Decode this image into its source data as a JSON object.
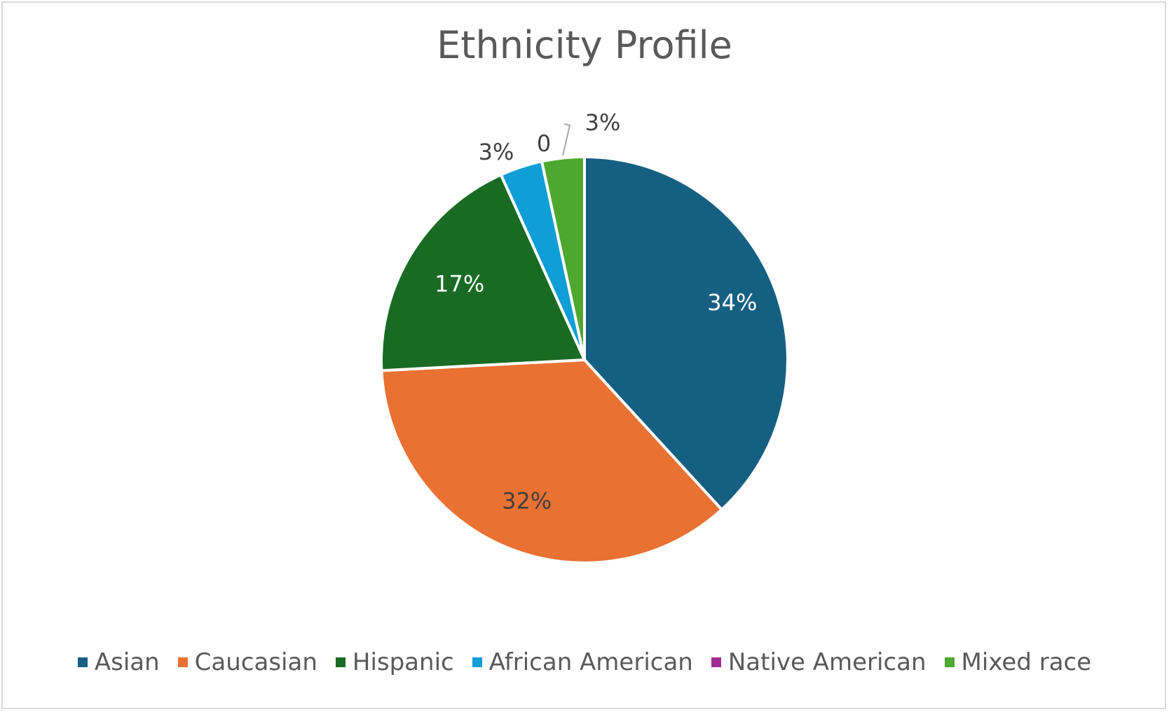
{
  "chart_data": {
    "type": "pie",
    "title": "Ethnicity Profile",
    "categories": [
      "Asian",
      "Caucasian",
      "Hispanic",
      "African American",
      "Native American",
      "Mixed race"
    ],
    "values": [
      34,
      32,
      17,
      3,
      0,
      3
    ],
    "data_labels": [
      "34%",
      "32%",
      "17%",
      "3%",
      "0",
      "3%"
    ],
    "colors": [
      "#156082",
      "#E97132",
      "#196B24",
      "#0F9ED5",
      "#A02B93",
      "#4EA72E"
    ],
    "legend_position": "bottom"
  }
}
